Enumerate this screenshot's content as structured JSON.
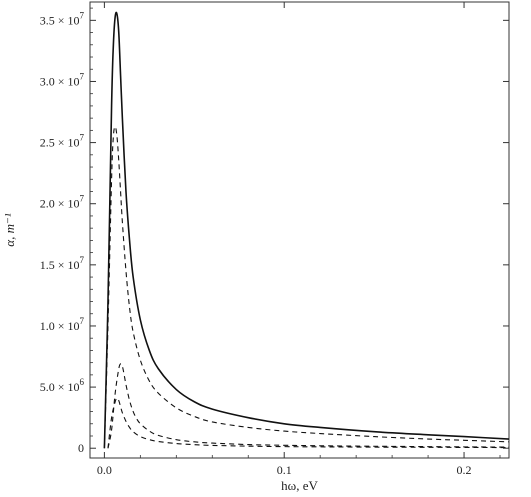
{
  "chart_data": {
    "type": "line",
    "title": "",
    "xlabel": "hω, eV",
    "ylabel": "α, m⁻¹",
    "xlim": [
      -0.008,
      0.225
    ],
    "ylim": [
      -800000,
      36500000
    ],
    "x_ticks": [
      {
        "value": 0.0,
        "label": "0.0"
      },
      {
        "value": 0.1,
        "label": "0.1"
      },
      {
        "value": 0.2,
        "label": "0.2"
      }
    ],
    "y_ticks": [
      {
        "value": 0,
        "mantissa": "0",
        "exp": ""
      },
      {
        "value": 5000000,
        "mantissa": "5.0 × 10",
        "exp": "6"
      },
      {
        "value": 10000000,
        "mantissa": "1.0 × 10",
        "exp": "7"
      },
      {
        "value": 15000000,
        "mantissa": "1.5 × 10",
        "exp": "7"
      },
      {
        "value": 20000000,
        "mantissa": "2.0 × 10",
        "exp": "7"
      },
      {
        "value": 25000000,
        "mantissa": "2.5 × 10",
        "exp": "7"
      },
      {
        "value": 30000000,
        "mantissa": "3.0 × 10",
        "exp": "7"
      },
      {
        "value": 35000000,
        "mantissa": "3.5 × 10",
        "exp": "7"
      }
    ],
    "grid": false,
    "legend": "none",
    "series": [
      {
        "style": "solid",
        "x": [
          0,
          0.002,
          0.004,
          0.005,
          0.006,
          0.007,
          0.008,
          0.009,
          0.01,
          0.012,
          0.014,
          0.016,
          0.02,
          0.025,
          0.03,
          0.04,
          0.05,
          0.06,
          0.08,
          0.1,
          0.12,
          0.15,
          0.18,
          0.2,
          0.225
        ],
        "values": [
          0,
          12000000,
          28000000,
          33000000,
          35300000,
          35500000,
          34000000,
          30500000,
          27000000,
          21000000,
          17000000,
          14000000,
          10500000,
          8000000,
          6500000,
          4800000,
          3800000,
          3200000,
          2500000,
          2000000,
          1700000,
          1350000,
          1100000,
          950000,
          750000
        ]
      },
      {
        "style": "dashed",
        "x": [
          0,
          0.002,
          0.004,
          0.005,
          0.006,
          0.007,
          0.008,
          0.009,
          0.01,
          0.012,
          0.014,
          0.016,
          0.02,
          0.025,
          0.03,
          0.04,
          0.05,
          0.06,
          0.08,
          0.1,
          0.12,
          0.15,
          0.18,
          0.2,
          0.225
        ],
        "values": [
          0,
          10000000,
          22000000,
          25500000,
          26300000,
          25500000,
          23500000,
          21000000,
          18500000,
          14500000,
          11500000,
          9500000,
          7200000,
          5500000,
          4500000,
          3300000,
          2600000,
          2150000,
          1700000,
          1400000,
          1200000,
          950000,
          750000,
          650000,
          520000
        ]
      },
      {
        "style": "dashed",
        "x": [
          0.002,
          0.004,
          0.006,
          0.008,
          0.009,
          0.01,
          0.011,
          0.012,
          0.014,
          0.016,
          0.018,
          0.02,
          0.025,
          0.03,
          0.04,
          0.05,
          0.06,
          0.08,
          0.1,
          0.12,
          0.15,
          0.18,
          0.2,
          0.225
        ],
        "values": [
          0,
          1500000,
          4500000,
          6500000,
          6900000,
          6700000,
          6000000,
          5200000,
          3900000,
          3000000,
          2400000,
          2000000,
          1400000,
          1050000,
          700000,
          520000,
          420000,
          300000,
          240000,
          200000,
          160000,
          130000,
          110000,
          90000
        ]
      },
      {
        "style": "dashed",
        "x": [
          0.002,
          0.004,
          0.006,
          0.007,
          0.008,
          0.009,
          0.01,
          0.012,
          0.014,
          0.016,
          0.02,
          0.025,
          0.03,
          0.04,
          0.05,
          0.06,
          0.08,
          0.1,
          0.12,
          0.15,
          0.18,
          0.2,
          0.225
        ],
        "values": [
          0,
          2500000,
          3800000,
          4100000,
          3900000,
          3400000,
          2900000,
          2200000,
          1700000,
          1350000,
          950000,
          700000,
          550000,
          380000,
          290000,
          230000,
          170000,
          130000,
          110000,
          90000,
          75000,
          65000,
          55000
        ]
      }
    ]
  }
}
